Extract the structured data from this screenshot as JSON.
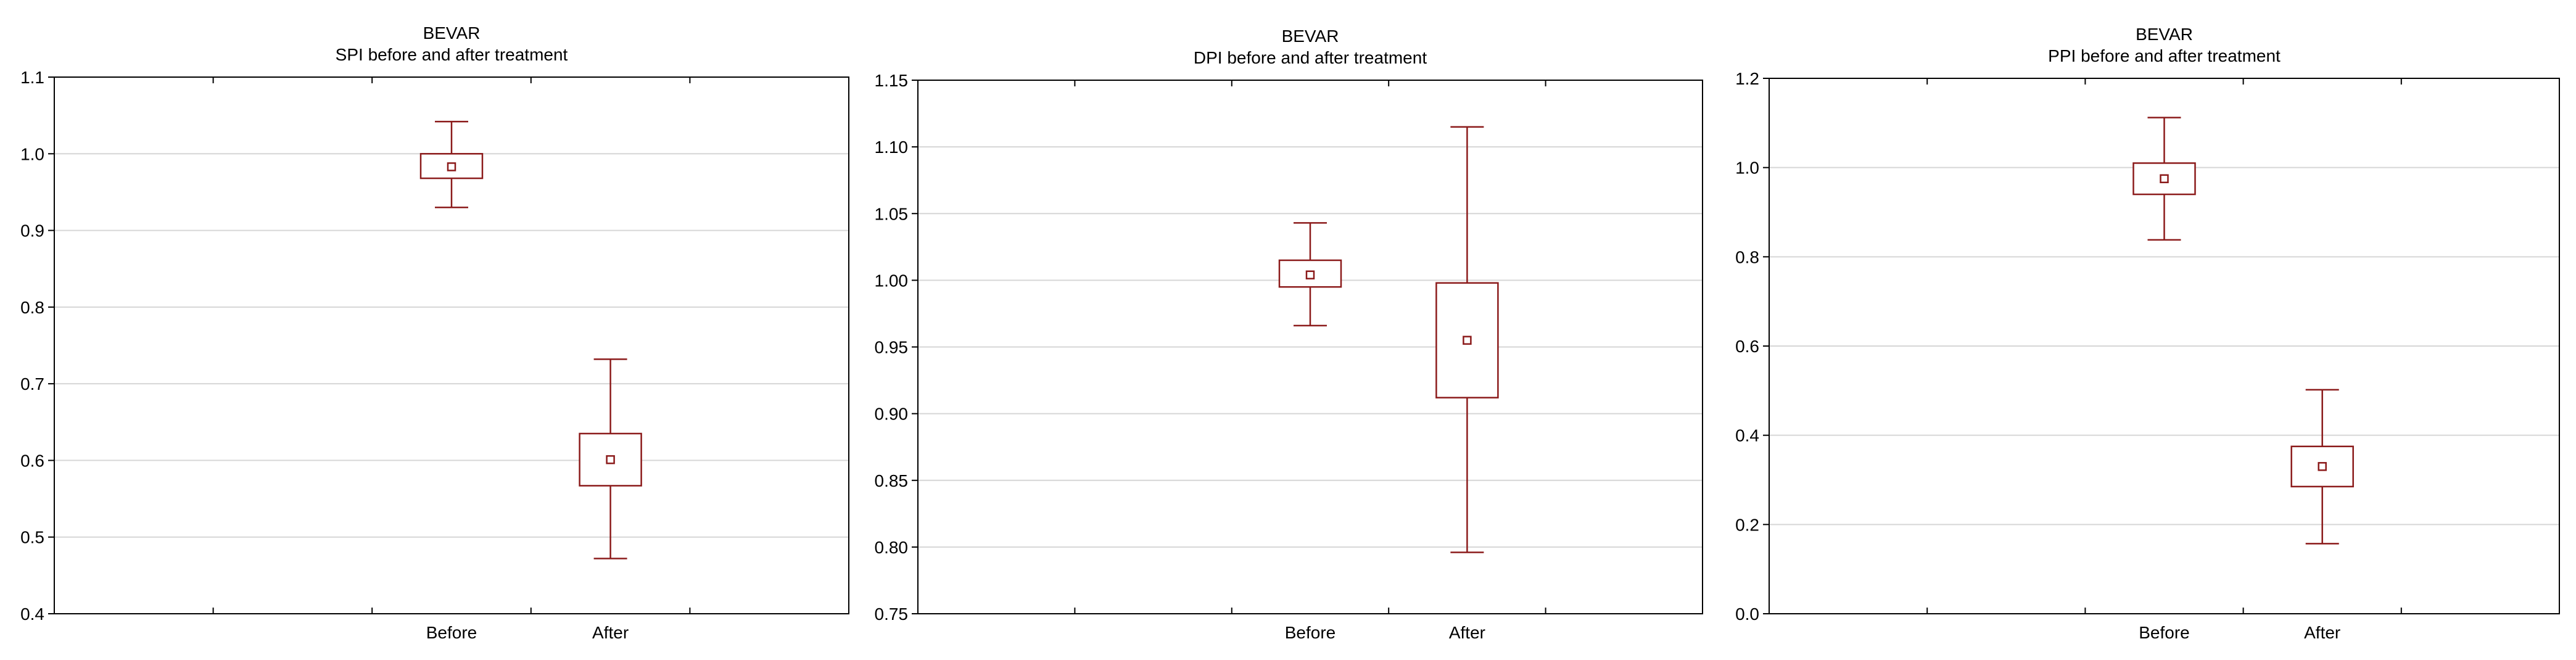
{
  "chart_data": [
    {
      "type": "box",
      "supertitle": "BEVAR",
      "title": "SPI before and after treatment",
      "xlabel": "",
      "ylabel": "",
      "categories": [
        "Before",
        "After"
      ],
      "boxes": [
        {
          "category": "Before",
          "mean": 0.983,
          "box_low": 0.968,
          "box_high": 1.0,
          "whisker_low": 0.93,
          "whisker_high": 1.042
        },
        {
          "category": "After",
          "mean": 0.601,
          "box_low": 0.567,
          "box_high": 0.635,
          "whisker_low": 0.472,
          "whisker_high": 0.732
        }
      ],
      "ylim": [
        0.4,
        1.1
      ],
      "yticks": [
        0.4,
        0.5,
        0.6,
        0.7,
        0.8,
        0.9,
        1.0,
        1.1
      ],
      "ytick_labels": [
        "0.4",
        "0.5",
        "0.6",
        "0.7",
        "0.8",
        "0.9",
        "1.0",
        "1.1"
      ],
      "grid": true,
      "color": "#8b1a1a"
    },
    {
      "type": "box",
      "supertitle": "BEVAR",
      "title": "DPI before and after treatment",
      "xlabel": "",
      "ylabel": "",
      "categories": [
        "Before",
        "After"
      ],
      "boxes": [
        {
          "category": "Before",
          "mean": 1.004,
          "box_low": 0.995,
          "box_high": 1.015,
          "whisker_low": 0.966,
          "whisker_high": 1.043
        },
        {
          "category": "After",
          "mean": 0.955,
          "box_low": 0.912,
          "box_high": 0.998,
          "whisker_low": 0.796,
          "whisker_high": 1.115
        }
      ],
      "ylim": [
        0.75,
        1.15
      ],
      "yticks": [
        0.75,
        0.8,
        0.85,
        0.9,
        0.95,
        1.0,
        1.05,
        1.1,
        1.15
      ],
      "ytick_labels": [
        "0.75",
        "0.80",
        "0.85",
        "0.90",
        "0.95",
        "1.00",
        "1.05",
        "1.10",
        "1.15"
      ],
      "grid": true,
      "color": "#8b1a1a"
    },
    {
      "type": "box",
      "supertitle": "BEVAR",
      "title": "PPI before and after treatment",
      "xlabel": "",
      "ylabel": "",
      "categories": [
        "Before",
        "After"
      ],
      "boxes": [
        {
          "category": "Before",
          "mean": 0.975,
          "box_low": 0.94,
          "box_high": 1.01,
          "whisker_low": 0.838,
          "whisker_high": 1.112
        },
        {
          "category": "After",
          "mean": 0.33,
          "box_low": 0.285,
          "box_high": 0.375,
          "whisker_low": 0.157,
          "whisker_high": 0.502
        }
      ],
      "ylim": [
        0.0,
        1.2
      ],
      "yticks": [
        0.0,
        0.2,
        0.4,
        0.6,
        0.8,
        1.0,
        1.2
      ],
      "ytick_labels": [
        "0.0",
        "0.2",
        "0.4",
        "0.6",
        "0.8",
        "1.0",
        "1.2"
      ],
      "grid": true,
      "color": "#8b1a1a"
    }
  ]
}
